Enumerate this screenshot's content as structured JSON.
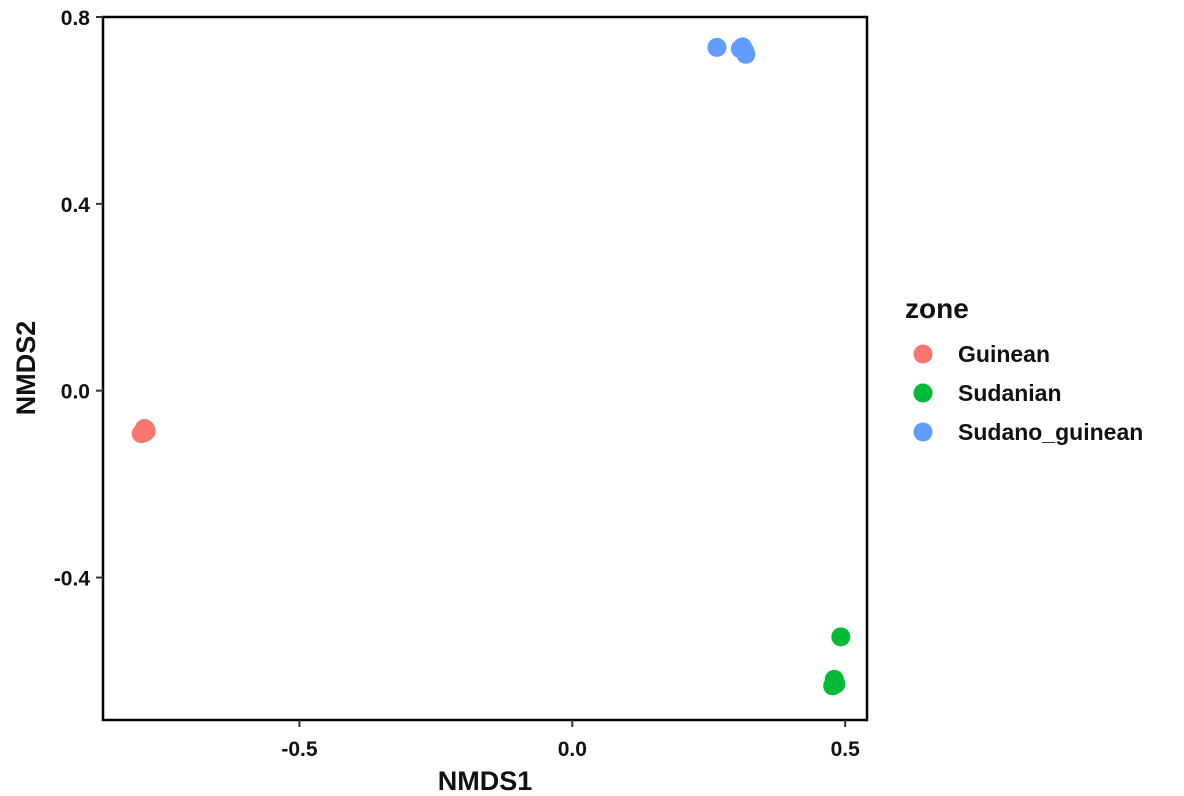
{
  "chart_data": {
    "type": "scatter",
    "xlabel": "NMDS1",
    "ylabel": "NMDS2",
    "xlim": [
      -0.86,
      0.54
    ],
    "ylim": [
      -0.705,
      0.8
    ],
    "x_ticks": [
      -0.5,
      0.0,
      0.5
    ],
    "x_tick_labels": [
      "-0.5",
      "0.0",
      "0.5"
    ],
    "y_ticks": [
      -0.4,
      0.0,
      0.4,
      0.8
    ],
    "y_tick_labels": [
      "-0.4",
      "0.0",
      "0.4",
      "0.8"
    ],
    "grid": false,
    "legend_placement": "right",
    "legend": {
      "title": "zone"
    },
    "series": [
      {
        "name": "Guinean",
        "color": "#F8766D",
        "points": [
          {
            "x": -0.785,
            "y": -0.09
          },
          {
            "x": -0.782,
            "y": -0.083
          },
          {
            "x": -0.79,
            "y": -0.092
          },
          {
            "x": -0.781,
            "y": -0.087
          },
          {
            "x": -0.784,
            "y": -0.081
          }
        ]
      },
      {
        "name": "Sudanian",
        "color": "#00BA38",
        "points": [
          {
            "x": 0.492,
            "y": -0.527
          },
          {
            "x": 0.48,
            "y": -0.618
          },
          {
            "x": 0.483,
            "y": -0.628
          },
          {
            "x": 0.477,
            "y": -0.632
          },
          {
            "x": 0.481,
            "y": -0.622
          }
        ]
      },
      {
        "name": "Sudano_guinean",
        "color": "#619CFF",
        "points": [
          {
            "x": 0.265,
            "y": 0.735
          },
          {
            "x": 0.308,
            "y": 0.732
          },
          {
            "x": 0.316,
            "y": 0.727
          },
          {
            "x": 0.318,
            "y": 0.72
          },
          {
            "x": 0.312,
            "y": 0.736
          }
        ]
      }
    ]
  }
}
